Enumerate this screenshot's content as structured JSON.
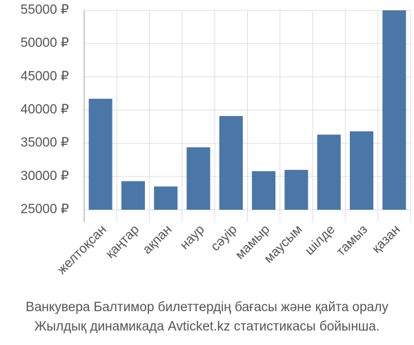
{
  "chart_data": {
    "type": "bar",
    "title": "Ванкувера Балтимор билеттердің бағасы және қайта оралу",
    "subtitle": "Жылдық динамикада Avticket.kz статистикасы бойынша.",
    "categories": [
      "желтоқсан",
      "қаңтар",
      "ақпан",
      "наур",
      "сәуір",
      "мамыр",
      "маусым",
      "шілде",
      "тамыз",
      "қазан"
    ],
    "values": [
      41700,
      29300,
      28500,
      34400,
      39100,
      30800,
      31000,
      36300,
      36800,
      55000
    ],
    "color": "#4a76a8",
    "ylim": [
      25000,
      55000
    ],
    "yticks": [
      {
        "value": 25000,
        "label": "25000 ₽"
      },
      {
        "value": 30000,
        "label": "30000 ₽"
      },
      {
        "value": 35000,
        "label": "35000 ₽"
      },
      {
        "value": 40000,
        "label": "40000 ₽"
      },
      {
        "value": 45000,
        "label": "45000 ₽"
      },
      {
        "value": 50000,
        "label": "50000 ₽"
      },
      {
        "value": 55000,
        "label": "55000 ₽"
      }
    ],
    "grid": true
  }
}
